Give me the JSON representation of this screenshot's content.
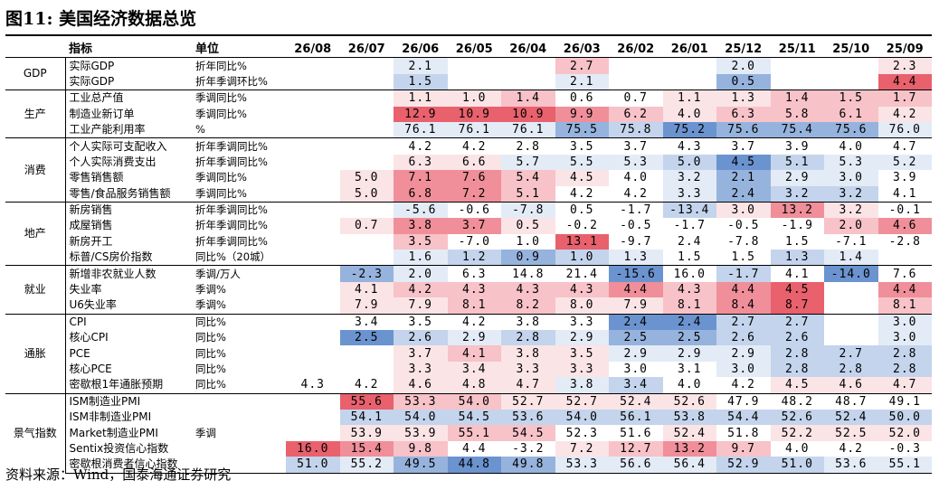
{
  "title": "图11:  美国经济数据总览",
  "header": {
    "indicator": "指标",
    "unit": "单位",
    "periods": [
      "26/08",
      "26/07",
      "26/06",
      "26/05",
      "26/04",
      "26/03",
      "26/02",
      "26/01",
      "25/12",
      "25/11",
      "25/10",
      "25/09"
    ]
  },
  "source": "资料来源：Wind，国泰海通证券研究",
  "colors": {
    "blank": "#ffffff",
    "red1": "#fbe4e6",
    "red2": "#f7c2c8",
    "red3": "#f08f99",
    "red4": "#e8616d",
    "blue1": "#e3ebf6",
    "blue2": "#c3d4ec",
    "blue3": "#96b3dd",
    "blue4": "#6b93cf"
  },
  "groups": [
    {
      "category": "GDP",
      "rows": [
        {
          "indicator": "实际GDP",
          "unit": "折年同比%",
          "values": [
            "",
            "",
            "2.1",
            "",
            "",
            "2.7",
            "",
            "",
            "2.0",
            "",
            "",
            "2.3"
          ],
          "shade": [
            "blank",
            "blank",
            "blue1",
            "blank",
            "blank",
            "red2",
            "blank",
            "blank",
            "blue1",
            "blank",
            "blank",
            "red1"
          ]
        },
        {
          "indicator": "实际GDP",
          "unit": "折年季调环比%",
          "values": [
            "",
            "",
            "1.5",
            "",
            "",
            "2.1",
            "",
            "",
            "0.5",
            "",
            "",
            "4.4"
          ],
          "shade": [
            "blank",
            "blank",
            "blue2",
            "blank",
            "blank",
            "blue1",
            "blank",
            "blank",
            "blue3",
            "blank",
            "blank",
            "red4"
          ]
        }
      ]
    },
    {
      "category": "生产",
      "rows": [
        {
          "indicator": "工业总产值",
          "unit": "季调同比%",
          "values": [
            "",
            "",
            "1.1",
            "1.0",
            "1.4",
            "0.6",
            "0.7",
            "1.1",
            "1.3",
            "1.4",
            "1.5",
            "1.7"
          ],
          "shade": [
            "blank",
            "blank",
            "red1",
            "red1",
            "red2",
            "blank",
            "blank",
            "red1",
            "red1",
            "red2",
            "red2",
            "red2"
          ]
        },
        {
          "indicator": "制造业新订单",
          "unit": "季调同比%",
          "values": [
            "",
            "",
            "12.9",
            "10.9",
            "10.9",
            "9.9",
            "6.2",
            "4.0",
            "6.3",
            "5.8",
            "6.1",
            "4.2"
          ],
          "shade": [
            "blank",
            "blank",
            "red4",
            "red4",
            "red4",
            "red3",
            "red2",
            "red1",
            "red2",
            "red2",
            "red2",
            "red1"
          ]
        },
        {
          "indicator": "工业产能利用率",
          "unit": "%",
          "values": [
            "",
            "",
            "76.1",
            "76.1",
            "76.1",
            "75.5",
            "75.8",
            "75.2",
            "75.6",
            "75.4",
            "75.6",
            "76.0"
          ],
          "shade": [
            "blank",
            "blank",
            "blue1",
            "blue1",
            "blue1",
            "blue3",
            "blue2",
            "blue4",
            "blue3",
            "blue3",
            "blue3",
            "blue1"
          ]
        }
      ]
    },
    {
      "category": "消费",
      "rows": [
        {
          "indicator": "个人实际可支配收入",
          "unit": "折年季调同比%",
          "values": [
            "",
            "",
            "4.2",
            "4.2",
            "2.8",
            "3.5",
            "3.7",
            "4.3",
            "3.7",
            "3.9",
            "4.0",
            "4.7"
          ],
          "shade": [
            "blank",
            "blank",
            "blank",
            "blank",
            "blank",
            "blank",
            "blank",
            "blank",
            "blank",
            "blank",
            "blank",
            "blank"
          ]
        },
        {
          "indicator": "个人实际消费支出",
          "unit": "折年季调同比%",
          "values": [
            "",
            "",
            "6.3",
            "6.6",
            "5.7",
            "5.5",
            "5.3",
            "5.0",
            "4.5",
            "5.1",
            "5.3",
            "5.2"
          ],
          "shade": [
            "blank",
            "blank",
            "red1",
            "red1",
            "blue1",
            "blue1",
            "blue1",
            "blue2",
            "blue4",
            "blue2",
            "blue1",
            "blue1"
          ]
        },
        {
          "indicator": "零售销售额",
          "unit": "季调同比%",
          "values": [
            "",
            "5.0",
            "7.1",
            "7.6",
            "5.4",
            "4.5",
            "4.0",
            "3.2",
            "2.1",
            "2.9",
            "3.0",
            "3.9"
          ],
          "shade": [
            "blank",
            "red1",
            "red3",
            "red3",
            "red2",
            "red1",
            "blank",
            "blue1",
            "blue3",
            "blue1",
            "blue1",
            "blank"
          ]
        },
        {
          "indicator": "零售/食品服务销售额",
          "unit": "季调同比%",
          "values": [
            "",
            "5.0",
            "6.8",
            "7.2",
            "5.1",
            "4.2",
            "4.2",
            "3.3",
            "2.4",
            "3.2",
            "3.2",
            "4.1"
          ],
          "shade": [
            "blank",
            "red1",
            "red3",
            "red3",
            "red2",
            "blank",
            "blank",
            "blue1",
            "blue3",
            "blue2",
            "blue2",
            "blank"
          ]
        }
      ]
    },
    {
      "category": "地产",
      "rows": [
        {
          "indicator": "新房销售",
          "unit": "折年季调同比%",
          "values": [
            "",
            "",
            "-5.6",
            "-0.6",
            "-7.8",
            "0.5",
            "-1.7",
            "-13.4",
            "3.0",
            "13.2",
            "3.2",
            "-0.1"
          ],
          "shade": [
            "blank",
            "blank",
            "blue1",
            "blank",
            "blue1",
            "blank",
            "blank",
            "blue2",
            "red1",
            "red3",
            "red1",
            "blank"
          ]
        },
        {
          "indicator": "成屋销售",
          "unit": "折年季调同比%",
          "values": [
            "",
            "0.7",
            "3.8",
            "3.7",
            "0.5",
            "-0.2",
            "-0.5",
            "-1.7",
            "-0.5",
            "-1.9",
            "2.0",
            "4.6"
          ],
          "shade": [
            "blank",
            "red1",
            "red3",
            "red3",
            "red1",
            "blank",
            "blank",
            "blank",
            "blank",
            "blank",
            "red2",
            "red3"
          ]
        },
        {
          "indicator": "新房开工",
          "unit": "折年季调同比%",
          "values": [
            "",
            "",
            "3.5",
            "-7.0",
            "1.0",
            "13.1",
            "-9.7",
            "2.4",
            "-7.8",
            "1.5",
            "-7.1",
            "-2.8"
          ],
          "shade": [
            "blank",
            "blank",
            "red2",
            "blank",
            "blank",
            "red4",
            "blank",
            "blank",
            "blank",
            "blank",
            "blank",
            "blank"
          ]
        },
        {
          "indicator": "标普/CS房价指数",
          "unit": "同比%（20城）",
          "values": [
            "",
            "",
            "1.6",
            "1.2",
            "0.9",
            "1.0",
            "1.3",
            "1.5",
            "1.5",
            "1.3",
            "1.4",
            ""
          ],
          "shade": [
            "blank",
            "blank",
            "blue1",
            "blue2",
            "blue3",
            "blue2",
            "blue1",
            "blank",
            "blank",
            "blue2",
            "blue1",
            "blank"
          ]
        }
      ]
    },
    {
      "category": "就业",
      "rows": [
        {
          "indicator": "新增非农就业人数",
          "unit": "季调/万人",
          "values": [
            "",
            "-2.3",
            "2.0",
            "6.3",
            "14.8",
            "21.4",
            "-15.6",
            "16.0",
            "-1.7",
            "4.1",
            "-14.0",
            "7.6"
          ],
          "shade": [
            "blank",
            "blue3",
            "blue1",
            "blank",
            "blank",
            "blank",
            "blue4",
            "blank",
            "blue2",
            "blank",
            "blue4",
            "blank"
          ]
        },
        {
          "indicator": "失业率",
          "unit": "季调%",
          "values": [
            "",
            "4.1",
            "4.2",
            "4.3",
            "4.3",
            "4.3",
            "4.4",
            "4.3",
            "4.4",
            "4.5",
            "",
            "4.4"
          ],
          "shade": [
            "blank",
            "red1",
            "red2",
            "red2",
            "red2",
            "red2",
            "red3",
            "red2",
            "red3",
            "red4",
            "blank",
            "red3"
          ]
        },
        {
          "indicator": "U6失业率",
          "unit": "季调%",
          "values": [
            "",
            "7.9",
            "7.9",
            "8.1",
            "8.2",
            "8.0",
            "7.9",
            "8.1",
            "8.4",
            "8.7",
            "",
            "8.1"
          ],
          "shade": [
            "blank",
            "red1",
            "red1",
            "red2",
            "red2",
            "red1",
            "red1",
            "red2",
            "red3",
            "red4",
            "blank",
            "red2"
          ]
        }
      ]
    },
    {
      "category": "通胀",
      "rows": [
        {
          "indicator": "CPI",
          "unit": "同比%",
          "values": [
            "",
            "3.4",
            "3.5",
            "4.2",
            "3.8",
            "3.3",
            "2.4",
            "2.4",
            "2.7",
            "2.7",
            "",
            "3.0"
          ],
          "shade": [
            "blank",
            "blank",
            "blank",
            "blank",
            "blank",
            "blank",
            "blue4",
            "blue4",
            "blue2",
            "blue2",
            "blank",
            "blue1"
          ]
        },
        {
          "indicator": "核心CPI",
          "unit": "同比%",
          "values": [
            "",
            "2.5",
            "2.6",
            "2.9",
            "2.8",
            "2.9",
            "2.5",
            "2.5",
            "2.6",
            "2.6",
            "",
            "3.0"
          ],
          "shade": [
            "blank",
            "blue4",
            "blue2",
            "blue1",
            "blue2",
            "blue1",
            "blue3",
            "blue3",
            "blue2",
            "blue2",
            "blank",
            "blue1"
          ]
        },
        {
          "indicator": "PCE",
          "unit": "同比%",
          "values": [
            "",
            "",
            "3.7",
            "4.1",
            "3.8",
            "3.5",
            "2.9",
            "2.9",
            "2.9",
            "2.8",
            "2.7",
            "2.8"
          ],
          "shade": [
            "blank",
            "blank",
            "red1",
            "red2",
            "red1",
            "red1",
            "blue1",
            "blue1",
            "blue1",
            "blue2",
            "blue2",
            "blue2"
          ]
        },
        {
          "indicator": "核心PCE",
          "unit": "同比%",
          "values": [
            "",
            "",
            "3.3",
            "3.4",
            "3.3",
            "3.3",
            "3.0",
            "3.1",
            "3.0",
            "2.8",
            "2.8",
            "2.8"
          ],
          "shade": [
            "blank",
            "blank",
            "red1",
            "red1",
            "red1",
            "red1",
            "blank",
            "blank",
            "blue1",
            "blue2",
            "blue2",
            "blue2"
          ]
        },
        {
          "indicator": "密歇根1年通胀预期",
          "unit": "同比%",
          "values": [
            "4.3",
            "4.2",
            "4.6",
            "4.8",
            "4.7",
            "3.8",
            "3.4",
            "4.0",
            "4.2",
            "4.5",
            "4.6",
            "4.7"
          ],
          "shade": [
            "blank",
            "blank",
            "red1",
            "red1",
            "red1",
            "blue1",
            "blue2",
            "blank",
            "blank",
            "red1",
            "red1",
            "red1"
          ]
        }
      ]
    },
    {
      "category": "景气指数",
      "rows": [
        {
          "indicator": "ISM制造业PMI",
          "unit": "",
          "values": [
            "",
            "55.6",
            "53.3",
            "54.0",
            "52.7",
            "52.7",
            "52.4",
            "52.6",
            "47.9",
            "48.2",
            "48.7",
            "49.1"
          ],
          "shade": [
            "blank",
            "red4",
            "red2",
            "red2",
            "red1",
            "red1",
            "red1",
            "red1",
            "blank",
            "blank",
            "blank",
            "blank"
          ]
        },
        {
          "indicator": "ISM非制造业PMI",
          "unit": "",
          "values": [
            "",
            "54.1",
            "54.0",
            "54.5",
            "53.6",
            "54.0",
            "56.1",
            "53.8",
            "54.4",
            "52.6",
            "52.4",
            "50.0"
          ],
          "shade": [
            "blank",
            "blue2",
            "blue2",
            "blue2",
            "blue2",
            "blue2",
            "blue2",
            "blue2",
            "blue2",
            "blue2",
            "blue2",
            "blue2"
          ]
        },
        {
          "indicator": "Market制造业PMI",
          "unit": "季调",
          "values": [
            "",
            "53.9",
            "53.9",
            "55.1",
            "54.5",
            "52.3",
            "51.6",
            "52.4",
            "51.8",
            "52.2",
            "52.5",
            "52.0"
          ],
          "shade": [
            "blank",
            "red1",
            "red1",
            "red2",
            "red2",
            "blank",
            "blank",
            "red1",
            "blank",
            "red1",
            "red1",
            "red1"
          ]
        },
        {
          "indicator": "Sentix投资信心指数",
          "unit": "",
          "values": [
            "16.0",
            "15.4",
            "9.8",
            "4.4",
            "-3.2",
            "7.2",
            "12.7",
            "13.2",
            "9.7",
            "4.0",
            "4.2",
            "-0.3"
          ],
          "shade": [
            "red4",
            "red3",
            "red2",
            "blank",
            "blank",
            "red1",
            "red2",
            "red3",
            "red2",
            "blank",
            "blank",
            "blank"
          ]
        },
        {
          "indicator": "密歇根消费者信心指数",
          "unit": "",
          "values": [
            "51.0",
            "55.2",
            "49.5",
            "44.8",
            "49.8",
            "53.3",
            "56.6",
            "56.4",
            "52.9",
            "51.0",
            "53.6",
            "55.1"
          ],
          "shade": [
            "blue2",
            "blue1",
            "blue3",
            "blue4",
            "blue3",
            "blue1",
            "blue1",
            "blue1",
            "blue2",
            "blue2",
            "blue1",
            "blue1"
          ]
        }
      ]
    }
  ]
}
